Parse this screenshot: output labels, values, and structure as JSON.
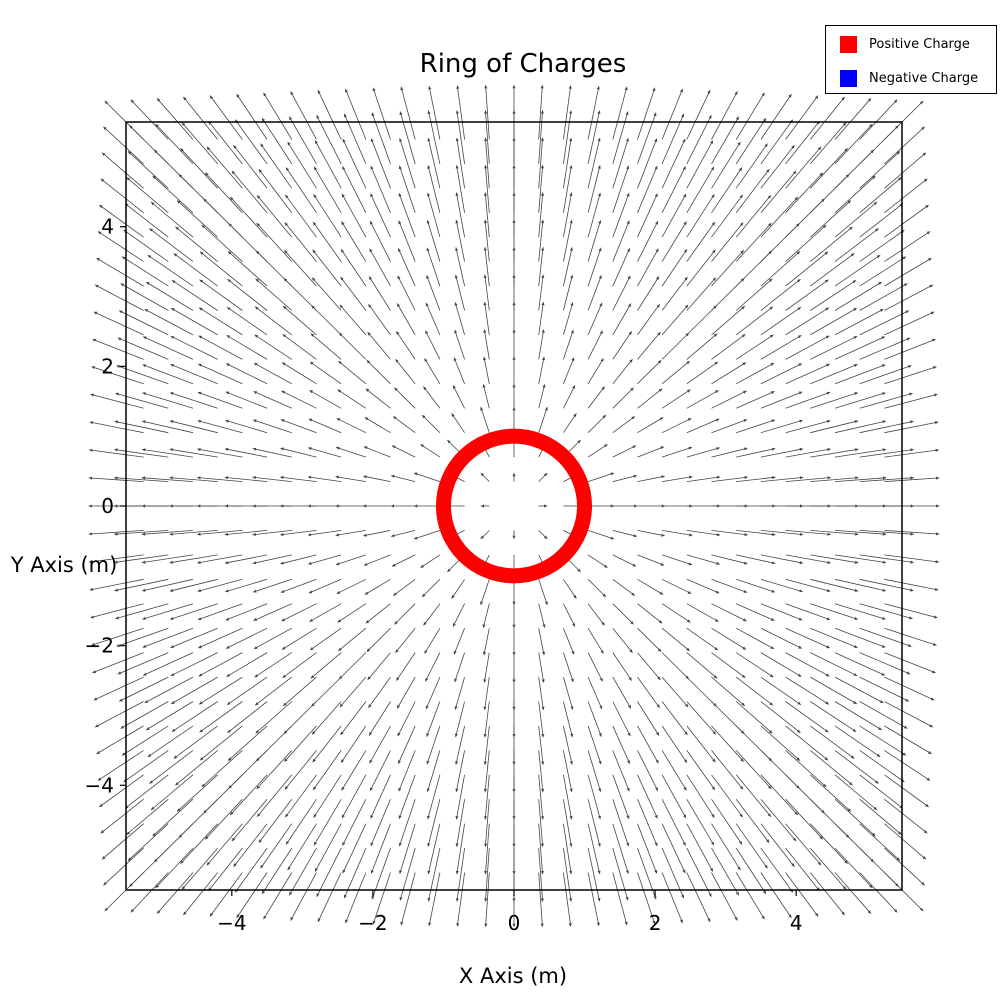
{
  "chart_data": {
    "type": "quiver",
    "title": "Ring of Charges",
    "xlabel": "X Axis (m)",
    "ylabel": "Y Axis (m)",
    "xlim": [
      -5.5,
      5.5
    ],
    "ylim": [
      -5.5,
      5.5
    ],
    "xticks": [
      -4,
      -2,
      0,
      2,
      4
    ],
    "yticks": [
      4,
      2,
      0,
      -2,
      -4
    ],
    "xtick_labels": [
      "−4",
      "−2",
      "0",
      "2",
      "4"
    ],
    "ytick_labels": [
      "4",
      "2",
      "0",
      "−2",
      "−4"
    ],
    "grid": false,
    "legend_position": "top-right",
    "legend": [
      {
        "label": "Positive Charge",
        "color": "#ff0000"
      },
      {
        "label": "Negative Charge",
        "color": "#0000ff"
      }
    ],
    "ring": {
      "center": [
        0,
        0
      ],
      "radius": 1.0,
      "color": "#ff0000",
      "charge": "positive"
    },
    "field": {
      "grid_range": [
        -5.25,
        5.25
      ],
      "grid_points": 31,
      "arrow_color": "#444444",
      "direction": "radially outward from the ring center"
    }
  }
}
